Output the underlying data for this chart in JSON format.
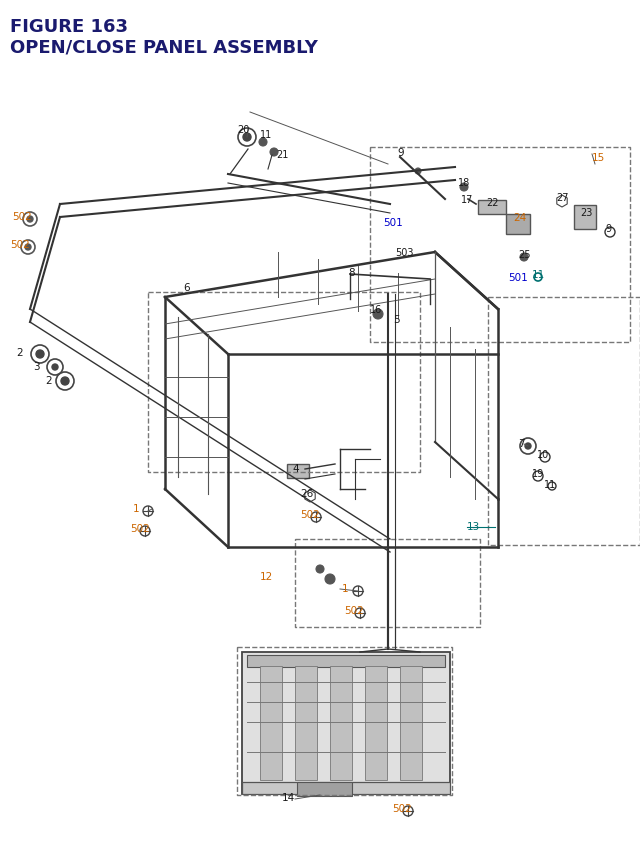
{
  "title_line1": "FIGURE 163",
  "title_line2": "OPEN/CLOSE PANEL ASSEMBLY",
  "title_color": "#1a1a6e",
  "title_fontsize": 13,
  "bg_color": "#ffffff",
  "label_color_default": "#1a1a1a",
  "label_color_orange": "#cc6600",
  "label_color_blue": "#0000cc",
  "label_color_teal": "#007070"
}
